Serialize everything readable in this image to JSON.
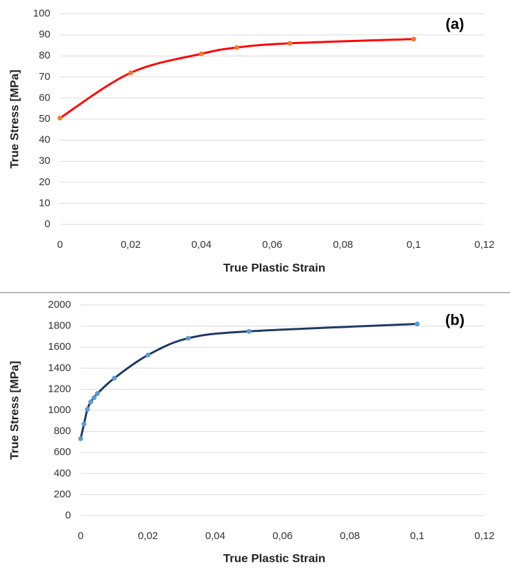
{
  "chart_data": [
    {
      "type": "line",
      "annotation": "(a)",
      "xlabel": "True Plastic Strain",
      "ylabel": "True Stress [MPa]",
      "x": [
        0,
        0.02,
        0.04,
        0.05,
        0.065,
        0.1
      ],
      "series": [
        {
          "color": "#ff0000",
          "marker_color": "#ed7d31",
          "values": [
            50.5,
            72,
            81,
            84,
            86,
            88
          ]
        }
      ],
      "xlim": [
        0,
        0.12
      ],
      "xticks": [
        0,
        {
          "value": 0.02,
          "label": "0,02"
        },
        {
          "value": 0.04,
          "label": "0,04"
        },
        {
          "value": 0.06,
          "label": "0,06"
        },
        {
          "value": 0.08,
          "label": "0,08"
        },
        {
          "value": 0.1,
          "label": "0,1"
        },
        {
          "value": 0.12,
          "label": "0,12"
        }
      ],
      "ylim": [
        0,
        100
      ],
      "yticks": [
        0,
        10,
        20,
        30,
        40,
        50,
        60,
        70,
        80,
        90,
        100
      ],
      "grid": true
    },
    {
      "type": "line",
      "annotation": "(b)",
      "xlabel": "True Plastic Strain",
      "ylabel": "True Stress [MPa]",
      "x": [
        0,
        0.001,
        0.002,
        0.003,
        0.004,
        0.005,
        0.01,
        0.02,
        0.032,
        0.05,
        0.1
      ],
      "series": [
        {
          "color": "#1f3864",
          "marker_color": "#5b9bd5",
          "values": [
            730,
            870,
            1010,
            1080,
            1120,
            1160,
            1305,
            1525,
            1685,
            1750,
            1820
          ]
        }
      ],
      "xlim": [
        0,
        0.12
      ],
      "xticks": [
        0,
        {
          "value": 0.02,
          "label": "0,02"
        },
        {
          "value": 0.04,
          "label": "0,04"
        },
        {
          "value": 0.06,
          "label": "0,06"
        },
        {
          "value": 0.08,
          "label": "0,08"
        },
        {
          "value": 0.1,
          "label": "0,1"
        },
        {
          "value": 0.12,
          "label": "0,12"
        }
      ],
      "ylim": [
        0,
        2000
      ],
      "yticks": [
        0,
        200,
        400,
        600,
        800,
        1000,
        1200,
        1400,
        1600,
        1800,
        2000
      ],
      "grid": true
    }
  ]
}
